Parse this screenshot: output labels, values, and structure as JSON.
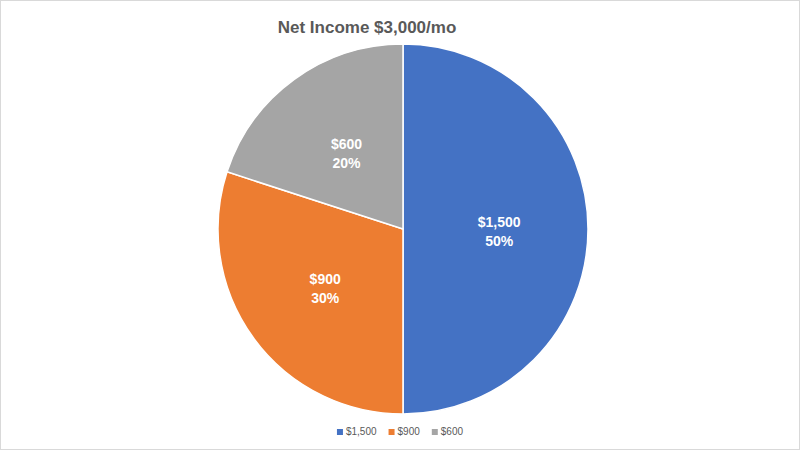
{
  "chart_data": {
    "type": "pie",
    "title": "Net Income $3,000/mo",
    "categories": [
      "$1,500",
      "$900",
      "$600"
    ],
    "values": [
      50,
      30,
      20
    ],
    "value_labels": [
      "50%",
      "30%",
      "20%"
    ],
    "colors": [
      "#4472c4",
      "#ed7d31",
      "#a5a5a5"
    ],
    "data_labels": true,
    "legend": "bottom"
  }
}
